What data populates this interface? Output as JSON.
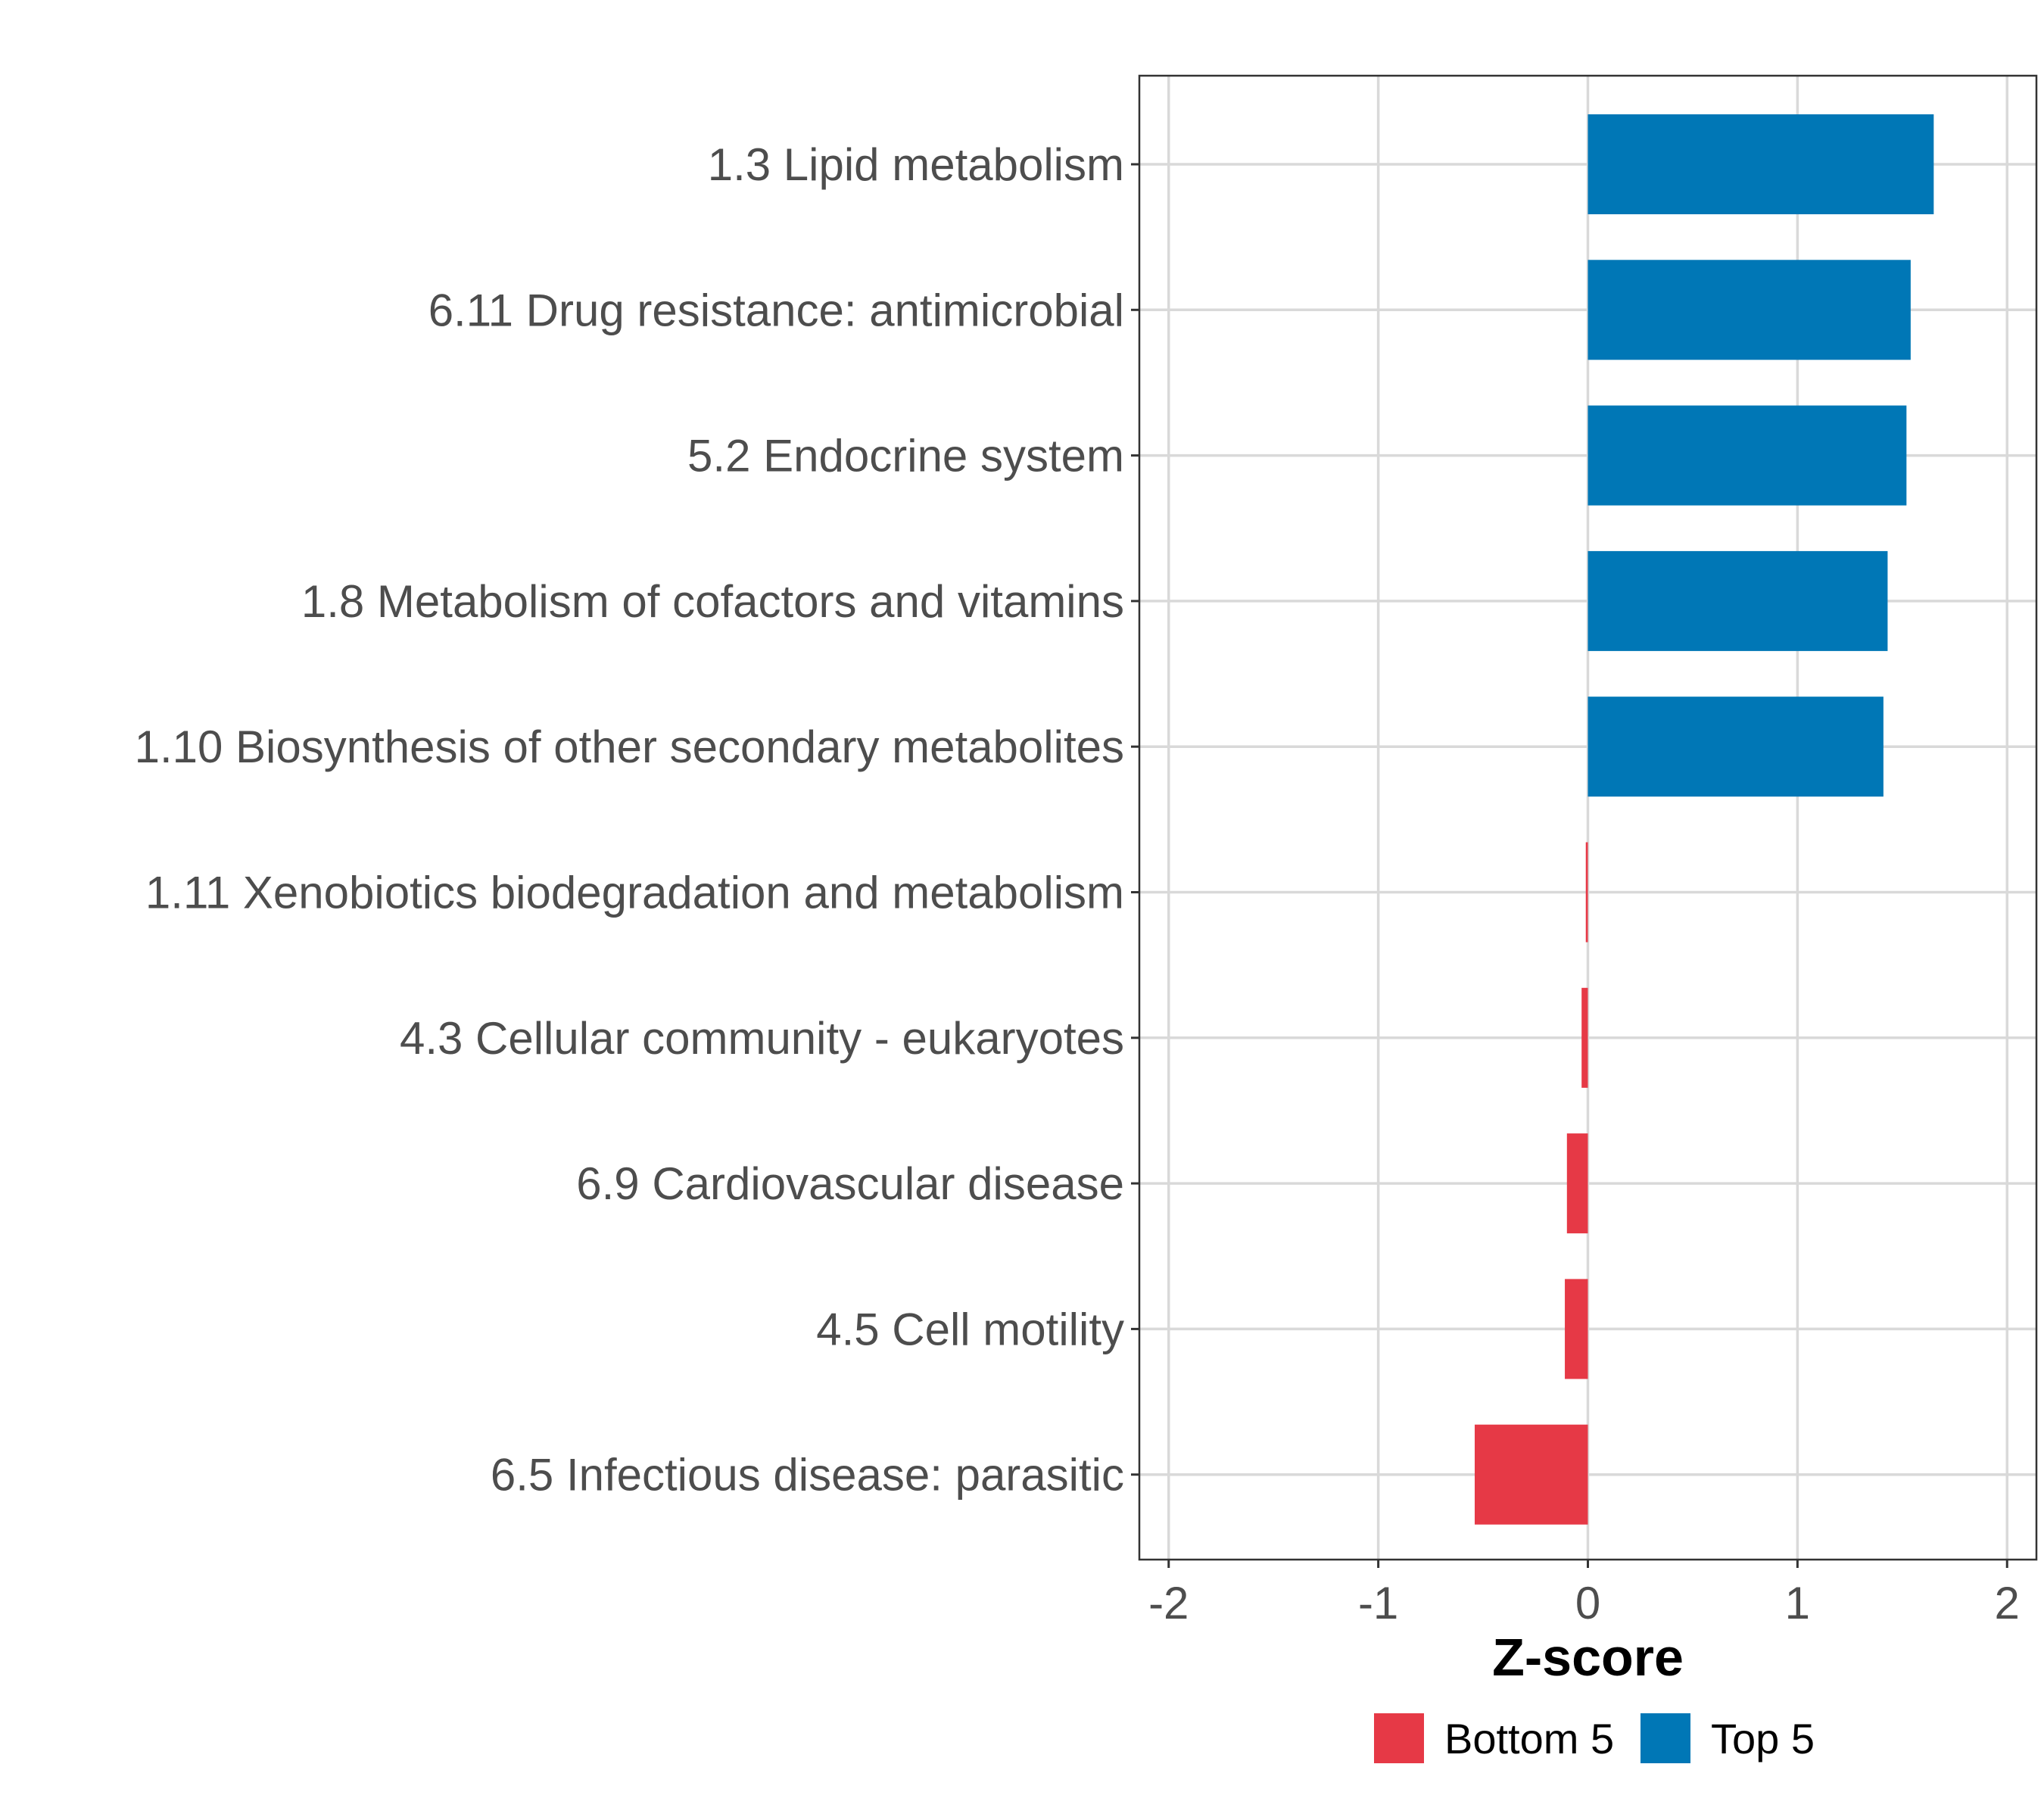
{
  "chart_data": {
    "type": "bar",
    "orientation": "horizontal",
    "categories": [
      "1.3 Lipid metabolism",
      "6.11 Drug resistance: antimicrobial",
      "5.2 Endocrine system",
      "1.8 Metabolism of cofactors and vitamins",
      "1.10 Biosynthesis of other secondary metabolites",
      "1.11 Xenobiotics biodegradation and metabolism",
      "4.3 Cellular community - eukaryotes",
      "6.9 Cardiovascular disease",
      "4.5 Cell motility",
      "6.5 Infectious disease: parasitic"
    ],
    "values": [
      1.65,
      1.54,
      1.52,
      1.43,
      1.41,
      -0.01,
      -0.03,
      -0.1,
      -0.11,
      -0.54
    ],
    "groups": [
      "Top 5",
      "Top 5",
      "Top 5",
      "Top 5",
      "Top 5",
      "Bottom 5",
      "Bottom 5",
      "Bottom 5",
      "Bottom 5",
      "Bottom 5"
    ],
    "xlabel": "Z-score",
    "ylabel": "",
    "xlim": [
      -2.14,
      2.14
    ],
    "xticks": [
      -2,
      -1,
      0,
      1,
      2
    ],
    "xtick_labels": [
      "-2",
      "-1",
      "0",
      "1",
      "2"
    ],
    "grid": true,
    "legend": {
      "position": "bottom",
      "entries": [
        {
          "label": "Bottom 5",
          "color": "#E63946"
        },
        {
          "label": "Top 5",
          "color": "#0077B6"
        }
      ]
    },
    "colors": {
      "Top 5": "#0077B6",
      "Bottom 5": "#E63946"
    }
  }
}
